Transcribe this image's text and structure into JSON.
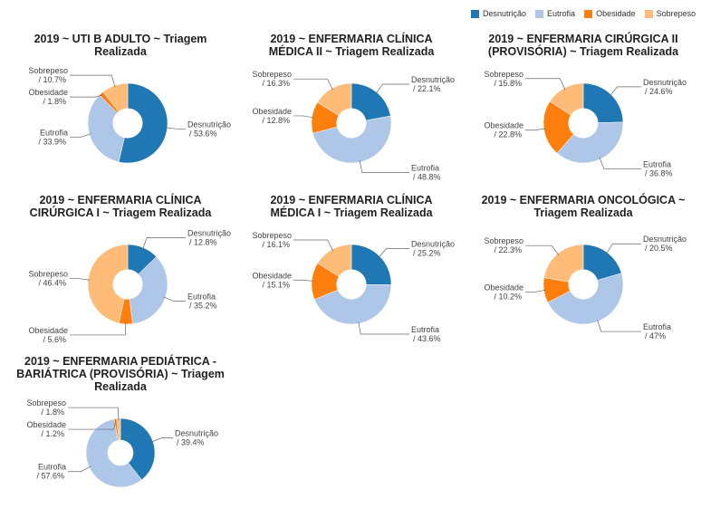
{
  "legend": [
    {
      "name": "Desnutrição",
      "color": "#1f77b4"
    },
    {
      "name": "Eutrofia",
      "color": "#aec7e8"
    },
    {
      "name": "Obesidade",
      "color": "#ff7f0e"
    },
    {
      "name": "Sobrepeso",
      "color": "#ffbb78"
    }
  ],
  "chart_data": [
    {
      "type": "pie",
      "title_lines": [
        "2019 ~ UTI B ADULTO ~ Triagem",
        "Realizada"
      ],
      "slices": [
        {
          "name": "Desnutrição",
          "value": 53.6,
          "label": "Desnutrição",
          "label_value": "/ 53.6%"
        },
        {
          "name": "Eutrofia",
          "value": 33.9,
          "label": "Eutrofia",
          "label_value": "/ 33.9%"
        },
        {
          "name": "Obesidade",
          "value": 1.8,
          "label": "Obesidade",
          "label_value": "/ 1.8%"
        },
        {
          "name": "Sobrepeso",
          "value": 10.7,
          "label": "Sobrepeso",
          "label_value": "/ 10.7%"
        }
      ]
    },
    {
      "type": "pie",
      "title_lines": [
        "2019 ~ ENFERMARIA CLÍNICA",
        "MÉDICA II ~ Triagem Realizada"
      ],
      "slices": [
        {
          "name": "Desnutrição",
          "value": 22.1,
          "label": "Desnutrição",
          "label_value": "/ 22.1%"
        },
        {
          "name": "Eutrofia",
          "value": 48.8,
          "label": "Eutrofia",
          "label_value": "/ 48.8%"
        },
        {
          "name": "Obesidade",
          "value": 12.8,
          "label": "Obesidade",
          "label_value": "/ 12.8%"
        },
        {
          "name": "Sobrepeso",
          "value": 16.3,
          "label": "Sobrepeso",
          "label_value": "/ 16.3%"
        }
      ]
    },
    {
      "type": "pie",
      "title_lines": [
        "2019 ~ ENFERMARIA CIRÚRGICA II",
        "(PROVISÓRIA) ~ Triagem Realizada"
      ],
      "slices": [
        {
          "name": "Desnutrição",
          "value": 24.6,
          "label": "Desnutrição",
          "label_value": "/ 24.6%"
        },
        {
          "name": "Eutrofia",
          "value": 36.8,
          "label": "Eutrofia",
          "label_value": "/ 36.8%"
        },
        {
          "name": "Obesidade",
          "value": 22.8,
          "label": "Obesidade",
          "label_value": "/ 22.8%"
        },
        {
          "name": "Sobrepeso",
          "value": 15.8,
          "label": "Sobrepeso",
          "label_value": "/ 15.8%"
        }
      ]
    },
    {
      "type": "pie",
      "title_lines": [
        "2019 ~ ENFERMARIA CLÍNICA",
        "CIRÚRGICA I ~ Triagem Realizada"
      ],
      "slices": [
        {
          "name": "Desnutrição",
          "value": 12.8,
          "label": "Desnutrição",
          "label_value": "/ 12.8%"
        },
        {
          "name": "Eutrofia",
          "value": 35.2,
          "label": "Eutrofia",
          "label_value": "/ 35.2%"
        },
        {
          "name": "Obesidade",
          "value": 5.6,
          "label": "Obesidade",
          "label_value": "/ 5.6%"
        },
        {
          "name": "Sobrepeso",
          "value": 46.4,
          "label": "Sobrepeso",
          "label_value": "/ 46.4%"
        }
      ]
    },
    {
      "type": "pie",
      "title_lines": [
        "2019 ~ ENFERMARIA CLÍNICA",
        "MÉDICA I ~ Triagem Realizada"
      ],
      "slices": [
        {
          "name": "Desnutrição",
          "value": 25.2,
          "label": "Desnutrição",
          "label_value": "/ 25.2%"
        },
        {
          "name": "Eutrofia",
          "value": 43.6,
          "label": "Eutrofia",
          "label_value": "/ 43.6%"
        },
        {
          "name": "Obesidade",
          "value": 15.1,
          "label": "Obesidade",
          "label_value": "/ 15.1%"
        },
        {
          "name": "Sobrepeso",
          "value": 16.1,
          "label": "Sobrepeso",
          "label_value": "/ 16.1%"
        }
      ]
    },
    {
      "type": "pie",
      "title_lines": [
        "2019 ~ ENFERMARIA ONCOLÓGICA ~",
        "Triagem Realizada"
      ],
      "slices": [
        {
          "name": "Desnutrição",
          "value": 20.5,
          "label": "Desnutrição",
          "label_value": "/ 20.5%"
        },
        {
          "name": "Eutrofia",
          "value": 47,
          "label": "Eutrofia",
          "label_value": "/ 47%"
        },
        {
          "name": "Obesidade",
          "value": 10.2,
          "label": "Obesidade",
          "label_value": "/ 10.2%"
        },
        {
          "name": "Sobrepeso",
          "value": 22.3,
          "label": "Sobrepeso",
          "label_value": "/ 22.3%"
        }
      ]
    },
    {
      "type": "pie",
      "title_lines": [
        "2019 ~ ENFERMARIA PEDIÁTRICA -",
        "BARIÁTRICA (PROVISÓRIA) ~ Triagem",
        "Realizada"
      ],
      "slices": [
        {
          "name": "Desnutrição",
          "value": 39.4,
          "label": "Desnutrição",
          "label_value": "/ 39.4%"
        },
        {
          "name": "Eutrofia",
          "value": 57.6,
          "label": "Eutrofia",
          "label_value": "/ 57.6%"
        },
        {
          "name": "Obesidade",
          "value": 1.2,
          "label": "Obesidade",
          "label_value": "/ 1.2%"
        },
        {
          "name": "Sobrepeso",
          "value": 1.8,
          "label": "Sobrepeso",
          "label_value": "/ 1.8%"
        }
      ]
    }
  ]
}
